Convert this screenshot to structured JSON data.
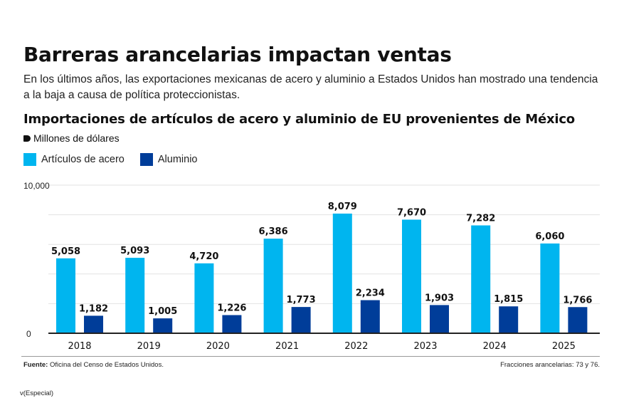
{
  "header": {
    "title": "Barreras arancelarias impactan ventas",
    "subtitle": "En los últimos años, las exportaciones mexicanas de acero y aluminio a Estados Unidos han mostrado una tendencia a la baja a causa de política proteccionistas."
  },
  "chart_data": {
    "type": "bar",
    "title": "Importaciones de artículos de acero y aluminio de EU provenientes de México",
    "units": "Millones de dólares",
    "xlabel": "",
    "ylabel": "Millones de dólares",
    "categories": [
      "2018",
      "2019",
      "2020",
      "2021",
      "2022",
      "2023",
      "2024",
      "2025"
    ],
    "series": [
      {
        "name": "Artículos de acero",
        "color": "#00b5ef",
        "values": [
          5058,
          5093,
          4720,
          6386,
          8079,
          7670,
          7282,
          6060
        ],
        "labels": [
          "5,058",
          "5,093",
          "4,720",
          "6,386",
          "8,079",
          "7,670",
          "7,282",
          "6,060"
        ]
      },
      {
        "name": "Aluminio",
        "color": "#003d99",
        "values": [
          1182,
          1005,
          1226,
          1773,
          2234,
          1903,
          1815,
          1766
        ],
        "labels": [
          "1,182",
          "1,005",
          "1,226",
          "1,773",
          "2,234",
          "1,903",
          "1,815",
          "1,766"
        ]
      }
    ],
    "ylim": [
      0,
      10000
    ],
    "yticks": [
      0,
      2000,
      4000,
      6000,
      8000,
      10000
    ],
    "ytick_labels": [
      "0",
      "",
      "",
      "",
      "",
      "10,000"
    ],
    "grid": true,
    "legend": "top-left"
  },
  "footer": {
    "source_label": "Fuente:",
    "source_text": " Oficina del Censo de Estados Unidos.",
    "note": "Fracciones arancelarias: 73 y 76.",
    "credit": "v(Especial)"
  }
}
